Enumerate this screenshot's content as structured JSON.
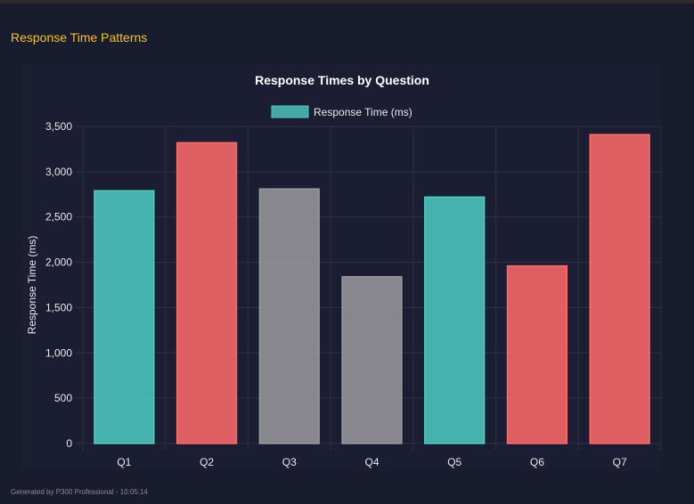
{
  "page": {
    "section_title": "Response Time Patterns",
    "footer": "Generated by P300 Professional - 10:05:14"
  },
  "chart_data": {
    "type": "bar",
    "title": "Response Times by Question",
    "legend": {
      "label": "Response Time (ms)",
      "position": "top",
      "color": "#4ecdc4"
    },
    "categories": [
      "Q1",
      "Q2",
      "Q3",
      "Q4",
      "Q5",
      "Q6",
      "Q7"
    ],
    "series": [
      {
        "name": "Response Time (ms)",
        "values": [
          2790,
          3320,
          2810,
          1840,
          2720,
          1960,
          3410
        ]
      }
    ],
    "bar_colors": [
      "#4ecdc4",
      "#ff6b6b",
      "#9a9a9e",
      "#9a9a9e",
      "#4ecdc4",
      "#ff6b6b",
      "#ff6b6b"
    ],
    "xlabel": "",
    "ylabel": "Response Time (ms)",
    "ylim": [
      0,
      3500
    ],
    "yticks": [
      "0",
      "500",
      "1,000",
      "1,500",
      "2,000",
      "2,500",
      "3,000",
      "3,500"
    ],
    "grid": true
  }
}
